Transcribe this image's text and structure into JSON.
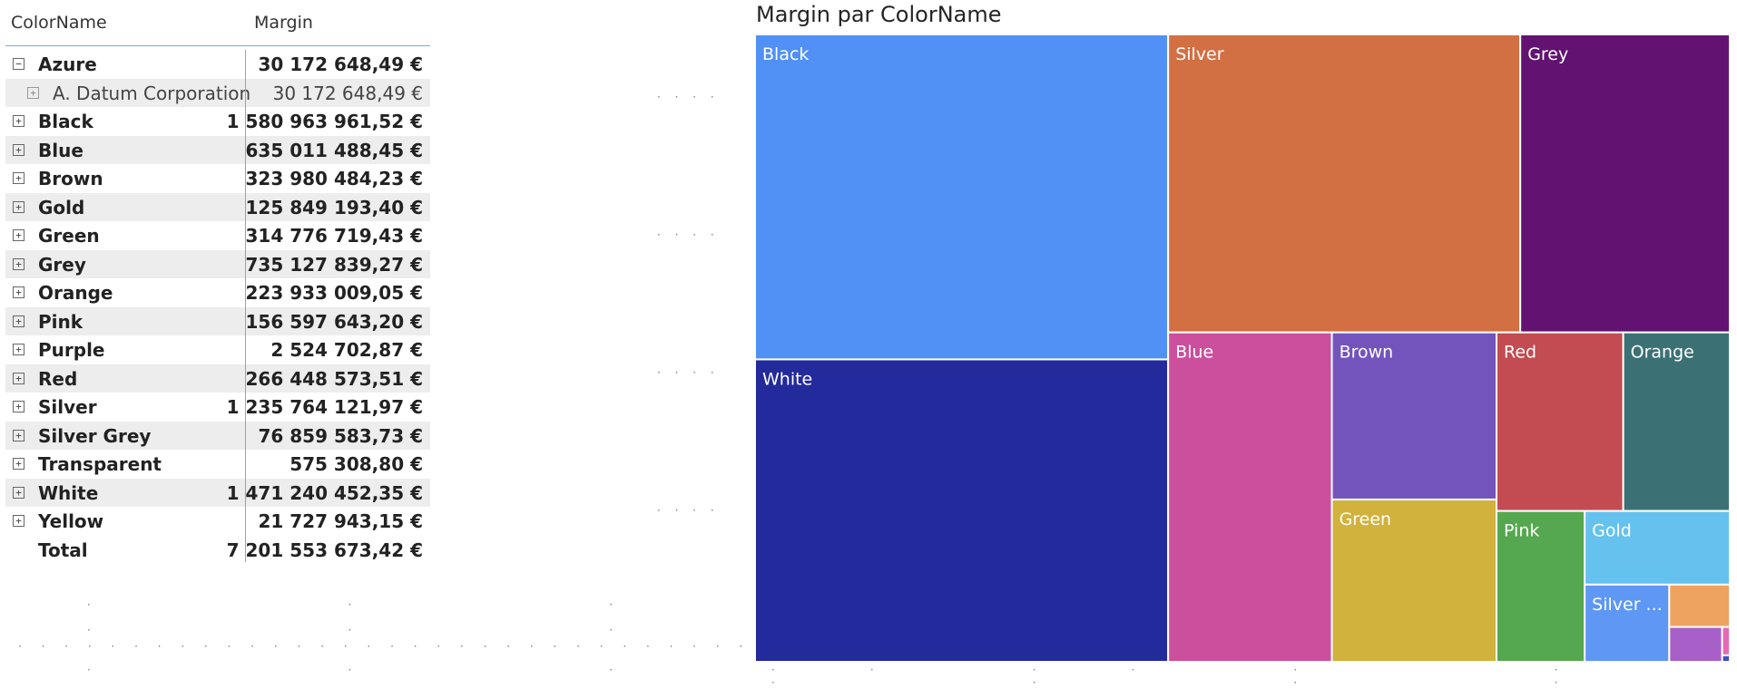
{
  "matrix": {
    "headers": {
      "col1": "ColorName",
      "col2": "Margin"
    },
    "rows": [
      {
        "name": "Azure",
        "value": "30 172 648,49 €",
        "toggle": "−",
        "level": 0
      },
      {
        "name": "A. Datum Corporation",
        "value": "30 172 648,49 €",
        "toggle": "+",
        "level": 1
      },
      {
        "name": "Black",
        "value": "1 580 963 961,52 €",
        "toggle": "+",
        "level": 0
      },
      {
        "name": "Blue",
        "value": "635 011 488,45 €",
        "toggle": "+",
        "level": 0
      },
      {
        "name": "Brown",
        "value": "323 980 484,23 €",
        "toggle": "+",
        "level": 0
      },
      {
        "name": "Gold",
        "value": "125 849 193,40 €",
        "toggle": "+",
        "level": 0
      },
      {
        "name": "Green",
        "value": "314 776 719,43 €",
        "toggle": "+",
        "level": 0
      },
      {
        "name": "Grey",
        "value": "735 127 839,27 €",
        "toggle": "+",
        "level": 0
      },
      {
        "name": "Orange",
        "value": "223 933 009,05 €",
        "toggle": "+",
        "level": 0
      },
      {
        "name": "Pink",
        "value": "156 597 643,20 €",
        "toggle": "+",
        "level": 0
      },
      {
        "name": "Purple",
        "value": "2 524 702,87 €",
        "toggle": "+",
        "level": 0
      },
      {
        "name": "Red",
        "value": "266 448 573,51 €",
        "toggle": "+",
        "level": 0
      },
      {
        "name": "Silver",
        "value": "1 235 764 121,97 €",
        "toggle": "+",
        "level": 0
      },
      {
        "name": "Silver Grey",
        "value": "76 859 583,73 €",
        "toggle": "+",
        "level": 0
      },
      {
        "name": "Transparent",
        "value": "575 308,80 €",
        "toggle": "+",
        "level": 0
      },
      {
        "name": "White",
        "value": "1 471 240 452,35 €",
        "toggle": "+",
        "level": 0
      },
      {
        "name": "Yellow",
        "value": "21 727 943,15 €",
        "toggle": "+",
        "level": 0
      }
    ],
    "total": {
      "name": "Total",
      "value": "7 201 553 673,42 €"
    }
  },
  "chart_data": {
    "type": "treemap",
    "title": "Margin par ColorName",
    "unit": "€",
    "items": [
      {
        "name": "Black",
        "label": "Black",
        "value": 1580963961.52,
        "color": "#5190f5"
      },
      {
        "name": "White",
        "label": "White",
        "value": 1471240452.35,
        "color": "#222a9c"
      },
      {
        "name": "Silver",
        "label": "Silver",
        "value": 1235764121.97,
        "color": "#d26f43"
      },
      {
        "name": "Grey",
        "label": "Grey",
        "value": 735127839.27,
        "color": "#621371"
      },
      {
        "name": "Blue",
        "label": "Blue",
        "value": 635011488.45,
        "color": "#cb4f9d"
      },
      {
        "name": "Brown",
        "label": "Brown",
        "value": 323980484.23,
        "color": "#7354bd"
      },
      {
        "name": "Green",
        "label": "Green",
        "value": 314776719.43,
        "color": "#d1b23c"
      },
      {
        "name": "Red",
        "label": "Red",
        "value": 266448573.51,
        "color": "#c24c51"
      },
      {
        "name": "Orange",
        "label": "Orange",
        "value": 223933009.05,
        "color": "#3b7175"
      },
      {
        "name": "Pink",
        "label": "Pink",
        "value": 156597643.2,
        "color": "#55a84f"
      },
      {
        "name": "Gold",
        "label": "Gold",
        "value": 125849193.4,
        "color": "#65c2ef"
      },
      {
        "name": "Silver Grey",
        "label": "Silver ...",
        "value": 76859583.73,
        "color": "#5e97f4"
      },
      {
        "name": "Azure",
        "label": "",
        "value": 30172648.49,
        "color": "#eea360"
      },
      {
        "name": "Yellow",
        "label": "",
        "value": 21727943.15,
        "color": "#a860c8"
      },
      {
        "name": "Purple",
        "label": "",
        "value": 2524702.87,
        "color": "#e569b4"
      },
      {
        "name": "Transparent",
        "label": "",
        "value": 575308.8,
        "color": "#3d4fc4"
      }
    ]
  }
}
